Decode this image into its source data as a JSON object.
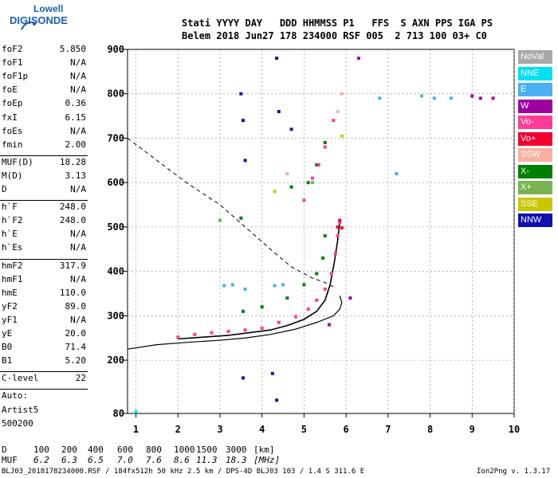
{
  "logo": {
    "line1": "Lowell",
    "line2": "DIGISONDE"
  },
  "header": {
    "line1": "Stati YYYY DAY   DDD HHMMSS P1   FFS  S AXN PPS IGA PS",
    "line2": "Belem 2018 Jun27 178 234000 RSF 005  2 713 100 03+ C0"
  },
  "params": {
    "group1": [
      {
        "name": "foF2",
        "value": "5.850"
      },
      {
        "name": "foF1",
        "value": "N/A"
      },
      {
        "name": "foF1p",
        "value": "N/A"
      },
      {
        "name": "foE",
        "value": "N/A"
      },
      {
        "name": "foEp",
        "value": "0.36"
      },
      {
        "name": "fxI",
        "value": "6.15"
      },
      {
        "name": "foEs",
        "value": "N/A"
      },
      {
        "name": "fmin",
        "value": "2.00"
      }
    ],
    "group2": [
      {
        "name": "MUF(D)",
        "value": "18.28"
      },
      {
        "name": "M(D)",
        "value": "3.13"
      },
      {
        "name": "D",
        "value": "N/A"
      }
    ],
    "group3": [
      {
        "name": "h`F",
        "value": "248.0"
      },
      {
        "name": "h`F2",
        "value": "248.0"
      },
      {
        "name": "h`E",
        "value": "N/A"
      },
      {
        "name": "h`Es",
        "value": "N/A"
      }
    ],
    "group4": [
      {
        "name": "hmF2",
        "value": "317.9"
      },
      {
        "name": "hmF1",
        "value": "N/A"
      },
      {
        "name": "hmE",
        "value": "110.0"
      },
      {
        "name": "yF2",
        "value": "89.0"
      },
      {
        "name": "yF1",
        "value": "N/A"
      },
      {
        "name": "yE",
        "value": "20.0"
      },
      {
        "name": "B0",
        "value": "71.4"
      },
      {
        "name": "B1",
        "value": "5.20"
      }
    ],
    "clevel": {
      "name": "C-level",
      "value": "22"
    },
    "auto": [
      "Auto:",
      "Artist5",
      "500200"
    ]
  },
  "legend": [
    {
      "label": "NoVal",
      "color": "#a8a8a8"
    },
    {
      "label": "NNE",
      "color": "#00e0f0"
    },
    {
      "label": "E",
      "color": "#4ab0f0"
    },
    {
      "label": "W",
      "color": "#a000a0"
    },
    {
      "label": "Vo-",
      "color": "#ff3c96"
    },
    {
      "label": "Vo+",
      "color": "#f00032"
    },
    {
      "label": "SSW",
      "color": "#f8b0a0"
    },
    {
      "label": "X-",
      "color": "#008000"
    },
    {
      "label": "X+",
      "color": "#78b450"
    },
    {
      "label": "SSE",
      "color": "#c8c800"
    },
    {
      "label": "NNW",
      "color": "#1010b0"
    }
  ],
  "muf_table": {
    "d_label": "D",
    "d_values": [
      "100",
      "200",
      "400",
      "600",
      "800",
      "1000",
      "1500",
      "3000",
      "[km]"
    ],
    "muf_label": "MUF",
    "muf_values": [
      "6.2",
      "6.3",
      "6.5",
      "7.0",
      "7.6",
      "8.6",
      "11.3",
      "18.3",
      "[MHz]"
    ]
  },
  "footer": {
    "left": "BLJ03_2018178234000.RSF / 184fx512h 50 kHz 2.5 km / DPS-4D BLJ03 103 / 1.4 S 311.6 E",
    "right": "Ion2Png v. 1.3.17"
  },
  "chart_data": {
    "type": "scatter",
    "title": "",
    "xlabel": "",
    "ylabel": "",
    "xlim": [
      0.8,
      10
    ],
    "ylim": [
      80,
      900
    ],
    "xticks": [
      1,
      2,
      3,
      4,
      5,
      6,
      7,
      8,
      9,
      10
    ],
    "yticks": [
      80,
      200,
      300,
      400,
      500,
      600,
      700,
      800,
      900
    ],
    "grid": true,
    "legend_position": "right",
    "series": [
      {
        "name": "X-",
        "color": "#008000",
        "points": [
          [
            3.55,
            310
          ],
          [
            4.0,
            320
          ],
          [
            4.6,
            340
          ],
          [
            5.0,
            370
          ],
          [
            5.3,
            395
          ],
          [
            5.45,
            430
          ],
          [
            5.5,
            480
          ],
          [
            5.1,
            600
          ],
          [
            5.3,
            640
          ],
          [
            5.5,
            690
          ],
          [
            3.5,
            520
          ],
          [
            4.7,
            590
          ]
        ]
      },
      {
        "name": "Vo-",
        "color": "#ff3c96",
        "points": [
          [
            2.0,
            252
          ],
          [
            2.4,
            258
          ],
          [
            2.8,
            262
          ],
          [
            3.2,
            265
          ],
          [
            3.6,
            268
          ],
          [
            4.0,
            272
          ],
          [
            4.4,
            285
          ],
          [
            4.8,
            298
          ],
          [
            5.1,
            315
          ],
          [
            5.3,
            335
          ],
          [
            5.5,
            360
          ],
          [
            5.65,
            395
          ],
          [
            5.75,
            440
          ],
          [
            5.8,
            480
          ],
          [
            5.85,
            510
          ],
          [
            5.0,
            560
          ],
          [
            5.2,
            610
          ],
          [
            5.35,
            640
          ],
          [
            5.5,
            680
          ],
          [
            5.7,
            740
          ]
        ]
      },
      {
        "name": "Vo+",
        "color": "#f00032",
        "points": [
          [
            5.8,
            500
          ],
          [
            5.85,
            515
          ],
          [
            5.9,
            498
          ]
        ]
      },
      {
        "name": "E",
        "color": "#4ab0f0",
        "points": [
          [
            3.1,
            368
          ],
          [
            3.3,
            370
          ],
          [
            3.6,
            360
          ],
          [
            4.3,
            368
          ],
          [
            4.5,
            370
          ],
          [
            6.8,
            790
          ],
          [
            7.8,
            795
          ],
          [
            8.1,
            790
          ],
          [
            8.5,
            790
          ],
          [
            7.2,
            620
          ]
        ]
      },
      {
        "name": "W",
        "color": "#a000a0",
        "points": [
          [
            6.3,
            880
          ],
          [
            9.0,
            795
          ],
          [
            9.2,
            790
          ],
          [
            9.5,
            790
          ],
          [
            5.6,
            280
          ],
          [
            6.1,
            340
          ]
        ]
      },
      {
        "name": "NNW",
        "color": "#1010b0",
        "points": [
          [
            3.5,
            800
          ],
          [
            3.55,
            740
          ],
          [
            3.6,
            650
          ],
          [
            4.35,
            880
          ],
          [
            4.4,
            760
          ],
          [
            4.7,
            720
          ],
          [
            3.55,
            160
          ],
          [
            4.25,
            170
          ],
          [
            4.35,
            110
          ]
        ]
      },
      {
        "name": "SSW",
        "color": "#f8b0a0",
        "points": [
          [
            5.9,
            800
          ],
          [
            5.8,
            760
          ],
          [
            4.6,
            620
          ]
        ]
      },
      {
        "name": "SSE",
        "color": "#c8c800",
        "points": [
          [
            5.9,
            705
          ],
          [
            4.3,
            580
          ]
        ]
      },
      {
        "name": "NNE",
        "color": "#00e0f0",
        "points": [
          [
            1.0,
            84
          ]
        ]
      },
      {
        "name": "X+",
        "color": "#78b450",
        "points": [
          [
            5.2,
            600
          ],
          [
            3.0,
            515
          ]
        ]
      }
    ]
  }
}
